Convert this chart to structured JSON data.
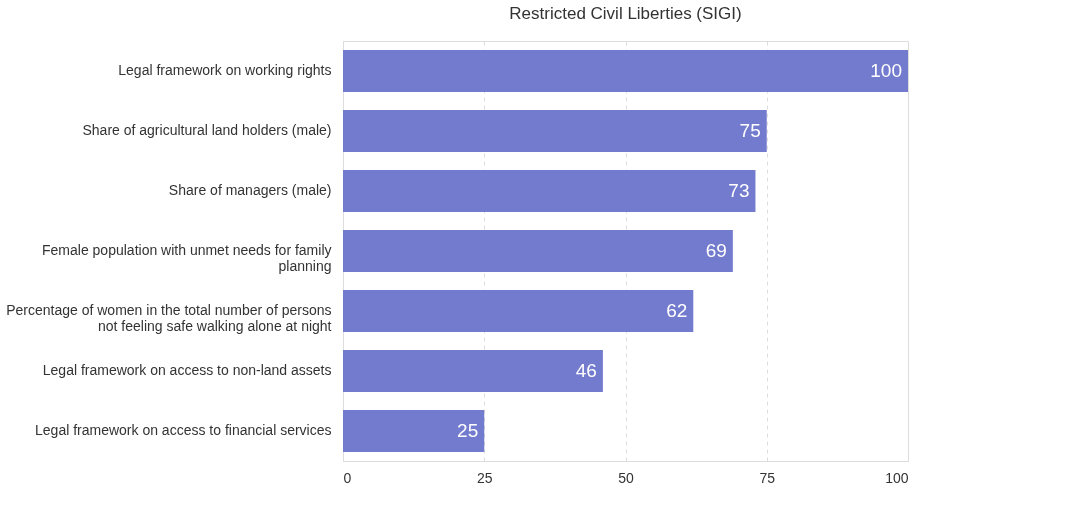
{
  "chart_data": {
    "type": "bar",
    "orientation": "horizontal",
    "title": "Restricted Civil Liberties (SIGI)",
    "categories": [
      "Legal framework on working rights",
      "Share of agricultural land holders (male)",
      "Share of managers (male)",
      "Female population with unmet needs for family planning",
      "Percentage of women in the total number of persons not feeling safe walking alone at night",
      "Legal framework on access to non-land assets",
      "Legal framework on access to financial services"
    ],
    "values": [
      100,
      75,
      73,
      69,
      62,
      46,
      25
    ],
    "color": "#6b74cc",
    "xlim": [
      0,
      100
    ],
    "xticks": [
      0,
      25,
      50,
      75,
      100
    ],
    "grid": "x",
    "data_labels": true
  }
}
